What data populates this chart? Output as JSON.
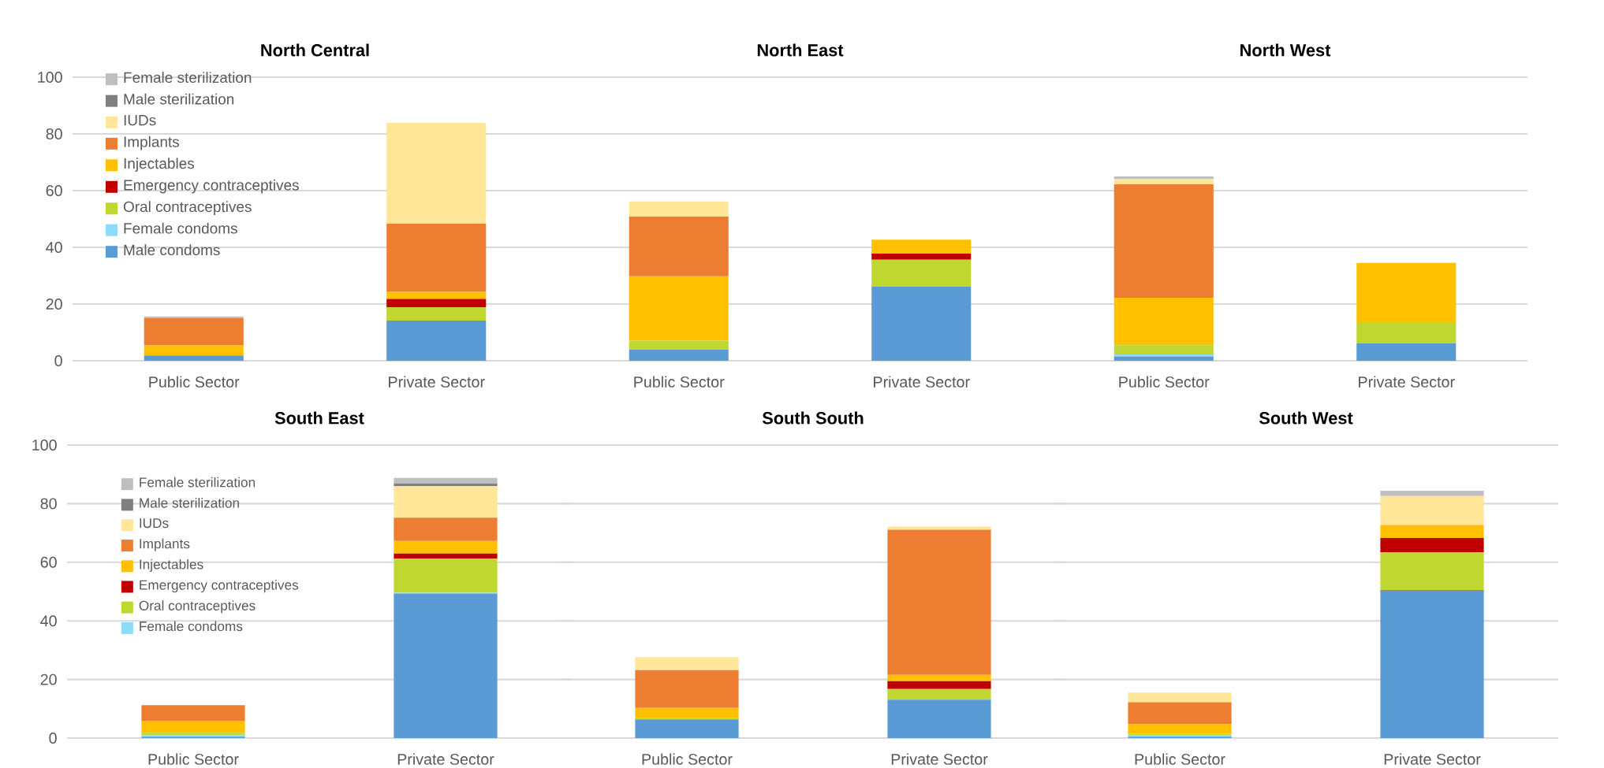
{
  "chart_data": [
    {
      "type": "bar",
      "stacked": true,
      "title": "North Central",
      "categories": [
        "Public Sector",
        "Private Sector"
      ],
      "ylim": [
        0,
        100
      ],
      "yticks": [
        0,
        20,
        40,
        60,
        80,
        100
      ],
      "grid": "y",
      "legend": "top left",
      "series": [
        {
          "name": "Male condoms",
          "color": "#5b9bd5",
          "values": [
            1.9,
            14.2
          ]
        },
        {
          "name": "Female condoms",
          "color": "#8fdcfa",
          "values": [
            0,
            0
          ]
        },
        {
          "color": "#67689c",
          "values": [
            0,
            0
          ]
        },
        {
          "name": "Oral contraceptives",
          "color": "#bfd730",
          "values": [
            0,
            4.7
          ]
        },
        {
          "name": "Emergency contraceptives",
          "color": "#c00000",
          "values": [
            0,
            2.9
          ]
        },
        {
          "name": "Injectables",
          "color": "#ffc000",
          "values": [
            3.5,
            2.5
          ]
        },
        {
          "name": "Implants",
          "color": "#ed7d31",
          "values": [
            9.7,
            24
          ]
        },
        {
          "name": "IUDs",
          "color": "#ffe699",
          "values": [
            0,
            35.6
          ]
        },
        {
          "name": "Male sterilization",
          "color": "#7f7f7f",
          "values": [
            0,
            0
          ]
        },
        {
          "name": "Female sterilization",
          "color": "#bfbfbf",
          "values": [
            0.5,
            0
          ]
        }
      ]
    },
    {
      "type": "bar",
      "stacked": true,
      "title": "North East",
      "categories": [
        "Public Sector",
        "Private Sector"
      ],
      "ylim": [
        0,
        100
      ],
      "yticks": [
        0,
        20,
        40,
        60,
        80,
        100
      ],
      "grid": "y",
      "tick_labels": "x",
      "series": [
        {
          "color": "#5b9bd5",
          "values": [
            3.9,
            26.2
          ]
        },
        {
          "color": "#8fdcfa",
          "values": [
            0,
            0
          ]
        },
        {
          "color": "#67689c",
          "values": [
            0,
            0
          ]
        },
        {
          "color": "#bfd730",
          "values": [
            3.2,
            9.4
          ]
        },
        {
          "color": "#c00000",
          "values": [
            0,
            2.2
          ]
        },
        {
          "color": "#ffc000",
          "values": [
            22.7,
            4.9
          ]
        },
        {
          "color": "#ed7d31",
          "values": [
            21,
            0
          ]
        },
        {
          "color": "#ffe699",
          "values": [
            5.4,
            0
          ]
        },
        {
          "color": "#7f7f7f",
          "values": [
            0,
            0
          ]
        },
        {
          "color": "#bfbfbf",
          "values": [
            0,
            0
          ]
        }
      ]
    },
    {
      "type": "bar",
      "stacked": true,
      "title": "North West",
      "categories": [
        "Public Sector",
        "Private Sector"
      ],
      "ylim": [
        0,
        100
      ],
      "yticks": [
        0,
        20,
        40,
        60,
        80,
        100
      ],
      "grid": "y",
      "tick_labels": "x",
      "series": [
        {
          "color": "#5b9bd5",
          "values": [
            1.5,
            6.2
          ]
        },
        {
          "color": "#8fdcfa",
          "values": [
            0.7,
            0
          ]
        },
        {
          "color": "#67689c",
          "values": [
            0,
            0
          ]
        },
        {
          "color": "#bfd730",
          "values": [
            3.3,
            7.4
          ]
        },
        {
          "color": "#c00000",
          "values": [
            0,
            0
          ]
        },
        {
          "color": "#ffc000",
          "values": [
            16.7,
            20.9
          ]
        },
        {
          "color": "#ed7d31",
          "values": [
            40,
            0
          ]
        },
        {
          "color": "#ffe699",
          "values": [
            2,
            0
          ]
        },
        {
          "color": "#7f7f7f",
          "values": [
            0,
            0
          ]
        },
        {
          "color": "#bfbfbf",
          "values": [
            0.8,
            0
          ]
        }
      ]
    },
    {
      "type": "bar",
      "stacked": true,
      "title": "South East",
      "categories": [
        "Public Sector",
        "Private Sector"
      ],
      "ylim": [
        0,
        100
      ],
      "yticks": [
        0,
        20,
        40,
        60,
        80,
        100
      ],
      "grid": "y",
      "legend": "top left",
      "series": [
        {
          "color": "#5b9bd5",
          "values": [
            0.5,
            49.3
          ]
        },
        {
          "name": "Female condoms",
          "color": "#8fdcfa",
          "values": [
            0.5,
            0.3
          ]
        },
        {
          "color": "#67689c",
          "values": [
            0,
            0
          ]
        },
        {
          "name": "Oral contraceptives",
          "color": "#bfd730",
          "values": [
            0.8,
            11.7
          ]
        },
        {
          "name": "Emergency contraceptives",
          "color": "#c00000",
          "values": [
            0,
            1.7
          ]
        },
        {
          "name": "Injectables",
          "color": "#ffc000",
          "values": [
            4.1,
            4.3
          ]
        },
        {
          "name": "Implants",
          "color": "#ed7d31",
          "values": [
            5.3,
            7.9
          ]
        },
        {
          "name": "IUDs",
          "color": "#ffe699",
          "values": [
            0,
            10.8
          ]
        },
        {
          "name": "Male sterilization",
          "color": "#7f7f7f",
          "values": [
            0,
            0.9
          ]
        },
        {
          "name": "Female sterilization",
          "color": "#bfbfbf",
          "values": [
            0,
            1.9
          ]
        }
      ]
    },
    {
      "type": "bar",
      "stacked": true,
      "title": "South South",
      "categories": [
        "Public Sector",
        "Private Sector"
      ],
      "ylim": [
        0,
        100
      ],
      "yticks": [
        0,
        20,
        40,
        60,
        80,
        100
      ],
      "grid": "y",
      "tick_labels": "x",
      "series": [
        {
          "color": "#5b9bd5",
          "values": [
            6.4,
            13.1
          ]
        },
        {
          "color": "#8fdcfa",
          "values": [
            0,
            0
          ]
        },
        {
          "color": "#67689c",
          "values": [
            0,
            0
          ]
        },
        {
          "color": "#bfd730",
          "values": [
            0.4,
            3.6
          ]
        },
        {
          "color": "#c00000",
          "values": [
            0,
            2.7
          ]
        },
        {
          "color": "#ffc000",
          "values": [
            3.5,
            2.2
          ]
        },
        {
          "color": "#ed7d31",
          "values": [
            12.9,
            49.5
          ]
        },
        {
          "color": "#ffe699",
          "values": [
            4.4,
            1.1
          ]
        },
        {
          "color": "#7f7f7f",
          "values": [
            0,
            0
          ]
        },
        {
          "color": "#bfbfbf",
          "values": [
            0,
            0
          ]
        }
      ]
    },
    {
      "type": "bar",
      "stacked": true,
      "title": "South West",
      "categories": [
        "Public Sector",
        "Private Sector"
      ],
      "ylim": [
        0,
        100
      ],
      "yticks": [
        0,
        20,
        40,
        60,
        80,
        100
      ],
      "grid": "y",
      "tick_labels": "x",
      "series": [
        {
          "color": "#5b9bd5",
          "values": [
            0.5,
            50.1
          ]
        },
        {
          "color": "#8fdcfa",
          "values": [
            0.4,
            0
          ]
        },
        {
          "color": "#67689c",
          "values": [
            0,
            0.4
          ]
        },
        {
          "color": "#bfd730",
          "values": [
            0.5,
            12.9
          ]
        },
        {
          "color": "#c00000",
          "values": [
            0,
            4.9
          ]
        },
        {
          "color": "#ffc000",
          "values": [
            3.3,
            4.4
          ]
        },
        {
          "color": "#ed7d31",
          "values": [
            7.5,
            0
          ]
        },
        {
          "color": "#ffe699",
          "values": [
            3.3,
            9.9
          ]
        },
        {
          "color": "#7f7f7f",
          "values": [
            0,
            0
          ]
        },
        {
          "color": "#bfbfbf",
          "values": [
            0,
            1.8
          ]
        }
      ]
    }
  ]
}
